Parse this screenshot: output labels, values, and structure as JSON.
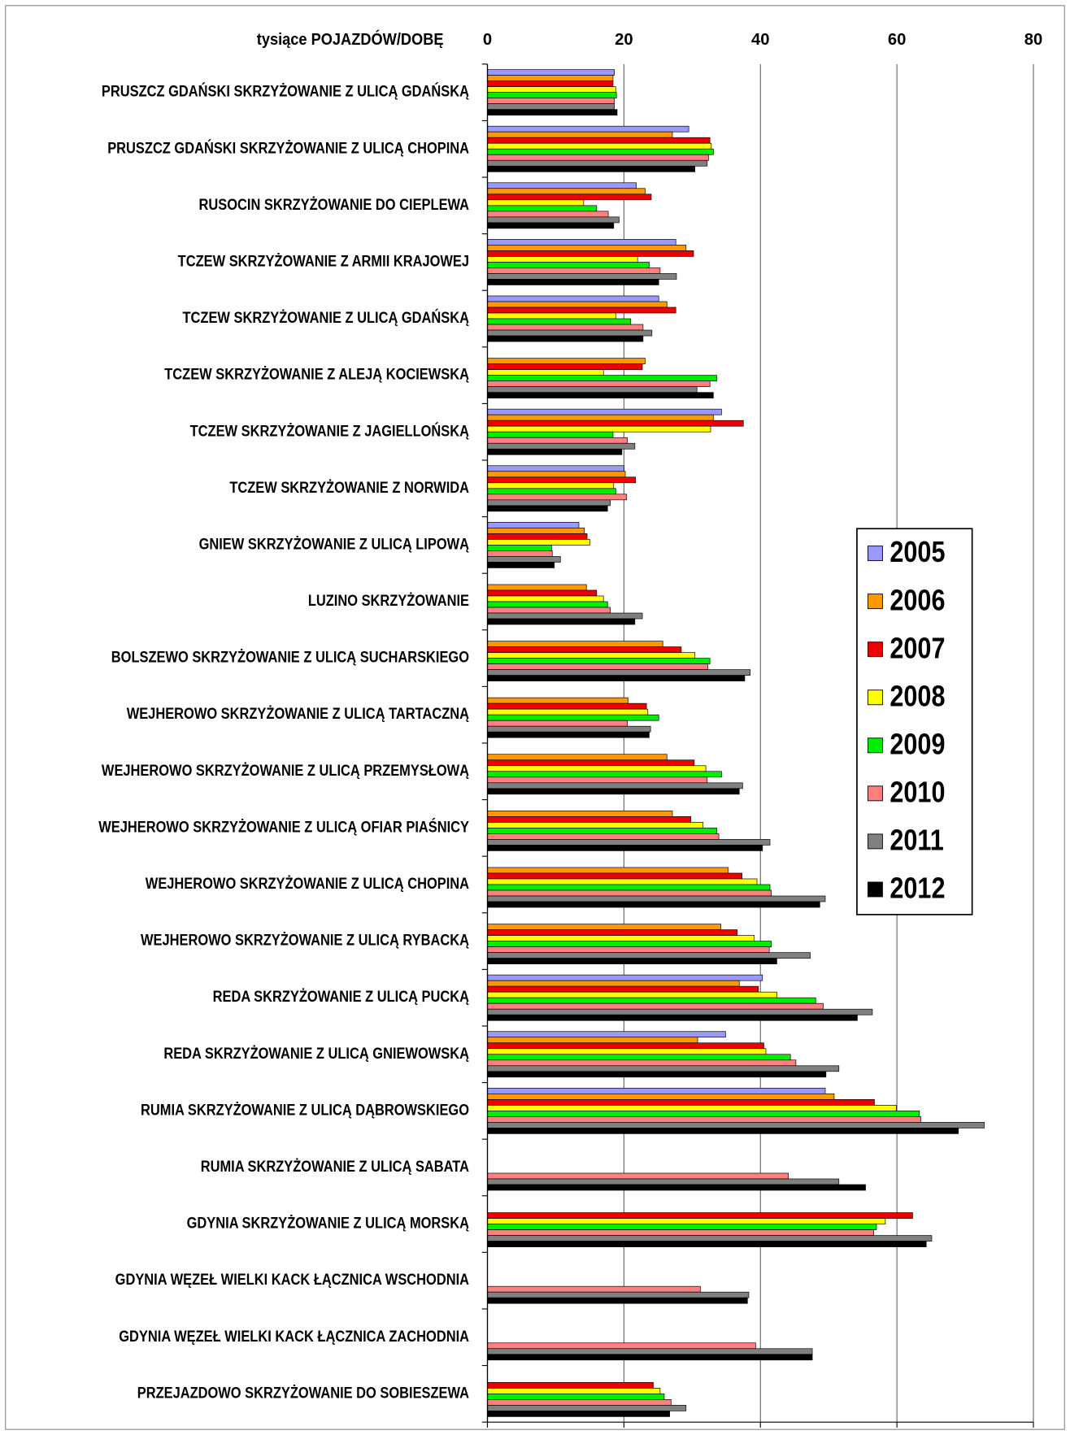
{
  "chart_data": {
    "type": "hbar",
    "title": "tysiące POJAZDÓW/DOBĘ",
    "categories": [
      "PRUSZCZ GDAŃSKI SKRZYŻOWANIE Z ULICĄ GDAŃSKĄ",
      "PRUSZCZ GDAŃSKI SKRZYŻOWANIE Z ULICĄ CHOPINA",
      "RUSOCIN SKRZYŻOWANIE DO CIEPLEWA",
      "TCZEW SKRZYŻOWANIE Z ARMII KRAJOWEJ",
      "TCZEW SKRZYŻOWANIE Z ULICĄ GDAŃSKĄ",
      "TCZEW SKRZYŻOWANIE Z ALEJĄ KOCIEWSKĄ",
      "TCZEW SKRZYŻOWANIE Z JAGIELLOŃSKĄ",
      "TCZEW SKRZYŻOWANIE Z NORWIDA",
      "GNIEW SKRZYŻOWANIE Z ULICĄ LIPOWĄ",
      "LUZINO SKRZYŻOWANIE",
      "BOLSZEWO SKRZYŻOWANIE Z ULICĄ SUCHARSKIEGO",
      "WEJHEROWO SKRZYŻOWANIE Z ULICĄ TARTACZNĄ",
      "WEJHEROWO SKRZYŻOWANIE Z ULICĄ PRZEMYSŁOWĄ",
      "WEJHEROWO SKRZYŻOWANIE Z ULICĄ OFIAR PIAŚNICY",
      "WEJHEROWO SKRZYŻOWANIE Z ULICĄ CHOPINA",
      "WEJHEROWO SKRZYŻOWANIE Z ULICĄ RYBACKĄ",
      "REDA SKRZYŻOWANIE Z ULICĄ PUCKĄ",
      "REDA SKRZYŻOWANIE Z ULICĄ GNIEWOWSKĄ",
      "RUMIA SKRZYŻOWANIE Z ULICĄ DĄBROWSKIEGO",
      "RUMIA SKRZYŻOWANIE Z ULICĄ SABATA",
      "GDYNIA SKRZYŻOWANIE Z ULICĄ MORSKĄ",
      "GDYNIA WĘZEŁ WIELKI KACK ŁĄCZNICA WSCHODNIA",
      "GDYNIA WĘZEŁ WIELKI KACK ŁĄCZNICA ZACHODNIA",
      "PRZEJAZDOWO SKRZYŻOWANIE DO SOBIESZEWA"
    ],
    "series": [
      {
        "name": "2005",
        "color": "#9999ff",
        "values": [
          18.6,
          29.5,
          21.8,
          27.6,
          25.1,
          null,
          34.3,
          20.0,
          13.4,
          null,
          null,
          null,
          null,
          null,
          null,
          null,
          40.3,
          34.9,
          49.5,
          null,
          null,
          null,
          null,
          null
        ]
      },
      {
        "name": "2006",
        "color": "#ff9900",
        "values": [
          18.4,
          27.1,
          23.1,
          29.1,
          26.3,
          23.1,
          33.1,
          20.2,
          14.2,
          14.5,
          25.7,
          20.6,
          26.3,
          27.1,
          35.3,
          34.2,
          36.9,
          30.8,
          50.8,
          null,
          null,
          null,
          null,
          null
        ]
      },
      {
        "name": "2007",
        "color": "#ee0000",
        "values": [
          18.4,
          32.6,
          24.0,
          30.2,
          27.6,
          22.7,
          37.5,
          21.7,
          14.6,
          16.0,
          28.4,
          23.3,
          30.3,
          29.8,
          37.3,
          36.6,
          39.7,
          40.5,
          56.7,
          null,
          62.3,
          null,
          null,
          24.3
        ]
      },
      {
        "name": "2008",
        "color": "#ffff00",
        "values": [
          18.8,
          32.8,
          14.1,
          22.0,
          18.8,
          17.0,
          32.7,
          18.5,
          15.0,
          17.0,
          30.4,
          23.5,
          32.0,
          31.6,
          39.5,
          39.1,
          42.4,
          40.8,
          59.9,
          null,
          58.3,
          null,
          null,
          25.3
        ]
      },
      {
        "name": "2009",
        "color": "#00ee00",
        "values": [
          18.9,
          33.1,
          16.0,
          23.7,
          21.0,
          33.6,
          18.4,
          18.8,
          9.4,
          17.6,
          32.6,
          25.1,
          34.3,
          33.6,
          41.4,
          41.6,
          48.1,
          44.4,
          63.3,
          null,
          57.0,
          null,
          null,
          25.9
        ]
      },
      {
        "name": "2010",
        "color": "#ff8080",
        "values": [
          18.6,
          32.4,
          17.7,
          25.3,
          22.8,
          32.6,
          20.5,
          20.4,
          9.5,
          18.0,
          32.3,
          20.5,
          32.2,
          33.9,
          41.6,
          41.3,
          49.2,
          45.2,
          63.5,
          44.1,
          56.6,
          31.2,
          39.3,
          26.9
        ]
      },
      {
        "name": "2011",
        "color": "#808080",
        "values": [
          18.6,
          32.2,
          19.3,
          27.7,
          24.1,
          30.7,
          21.6,
          18.0,
          10.7,
          22.7,
          38.5,
          23.9,
          37.4,
          41.4,
          49.5,
          47.3,
          56.4,
          51.5,
          72.8,
          51.5,
          65.1,
          38.3,
          47.6,
          29.1
        ]
      },
      {
        "name": "2012",
        "color": "#000000",
        "values": [
          19.0,
          30.4,
          18.5,
          25.1,
          22.8,
          33.1,
          19.7,
          17.6,
          9.8,
          21.6,
          37.7,
          23.7,
          36.9,
          40.3,
          48.7,
          42.4,
          54.2,
          49.6,
          69.0,
          55.4,
          64.3,
          38.1,
          47.6,
          26.7
        ]
      }
    ],
    "xlim": [
      0,
      80
    ],
    "xticks": [
      0,
      20,
      40,
      60,
      80
    ],
    "grid": true,
    "legend": "right"
  }
}
